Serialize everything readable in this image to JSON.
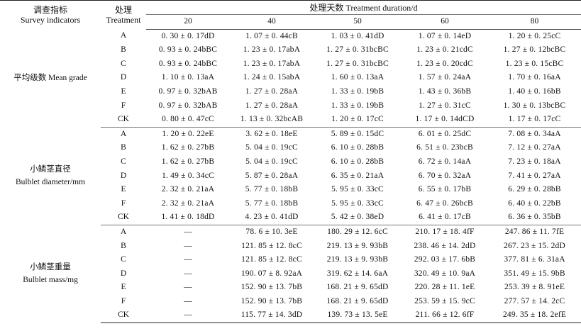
{
  "header": {
    "indicator_cn": "调查指标",
    "indicator_en": "Survey indicators",
    "treatment_cn": "处理",
    "treatment_en": "Treatment",
    "duration_label": "处理天数 Treatment duration/d",
    "days": [
      "20",
      "40",
      "50",
      "60",
      "80"
    ]
  },
  "groups": [
    {
      "name_cn": "平均级数 Mean grade",
      "name_en": "",
      "rows": [
        {
          "treatment": "A",
          "values": [
            "0. 30 ± 0. 17dD",
            "1. 07 ± 0. 44cB",
            "1. 03 ± 0. 41dD",
            "1. 07 ± 0. 14eD",
            "1. 20 ± 0. 25cC"
          ]
        },
        {
          "treatment": "B",
          "values": [
            "0. 93 ± 0. 24bBC",
            "1. 23 ± 0. 17abA",
            "1. 27 ± 0. 31bcBC",
            "1. 23 ± 0. 21cdC",
            "1. 27 ± 0. 12bcBC"
          ]
        },
        {
          "treatment": "C",
          "values": [
            "0. 93 ± 0. 24bBC",
            "1. 23 ± 0. 17abA",
            "1. 27 ± 0. 31bcBC",
            "1. 23 ± 0. 20cdC",
            "1. 23 ± 0. 15cBC"
          ]
        },
        {
          "treatment": "D",
          "values": [
            "1. 10 ± 0. 13aA",
            "1. 24 ± 0. 15abA",
            "1. 60 ± 0. 13aA",
            "1. 57 ± 0. 24aA",
            "1. 70 ± 0. 16aA"
          ]
        },
        {
          "treatment": "E",
          "values": [
            "0. 97 ± 0. 32bAB",
            "1. 27 ± 0. 28aA",
            "1. 33 ± 0. 19bB",
            "1. 43 ± 0. 36bB",
            "1. 40 ± 0. 16bB"
          ]
        },
        {
          "treatment": "F",
          "values": [
            "0. 97 ± 0. 32bAB",
            "1. 27 ± 0. 28aA",
            "1. 33 ± 0. 19bB",
            "1. 27 ± 0. 31cC",
            "1. 30 ± 0. 13bcBC"
          ]
        },
        {
          "treatment": "CK",
          "values": [
            "0. 80 ± 0. 47cC",
            "1. 13 ± 0. 32bcAB",
            "1. 20 ± 0. 17cC",
            "1. 17 ± 0. 14dCD",
            "1. 17 ± 0. 17cC"
          ]
        }
      ]
    },
    {
      "name_cn": "小鳞茎直径",
      "name_en": "Bulblet diameter/mm",
      "rows": [
        {
          "treatment": "A",
          "values": [
            "1. 20 ± 0. 22eE",
            "3. 62 ± 0. 18eE",
            "5. 89 ± 0. 15dC",
            "6. 01 ± 0. 25dC",
            "7. 08 ± 0. 34aA"
          ]
        },
        {
          "treatment": "B",
          "values": [
            "1. 62 ± 0. 27bB",
            "5. 04 ± 0. 19cC",
            "6. 10 ± 0. 28bB",
            "6. 51 ± 0. 23bcB",
            "7. 12 ± 0. 27aA"
          ]
        },
        {
          "treatment": "C",
          "values": [
            "1. 62 ± 0. 27bB",
            "5. 04 ± 0. 19cC",
            "6. 10 ± 0. 28bB",
            "6. 72 ± 0. 14aA",
            "7. 23 ± 0. 18aA"
          ]
        },
        {
          "treatment": "D",
          "values": [
            "1. 49 ± 0. 34cC",
            "5. 87 ± 0. 28aA",
            "6. 35 ± 0. 21aA",
            "6. 70 ± 0. 32aA",
            "7. 41 ± 0. 27aA"
          ]
        },
        {
          "treatment": "E",
          "values": [
            "2. 32 ± 0. 21aA",
            "5. 77 ± 0. 18bB",
            "5. 95 ± 0. 33cC",
            "6. 55 ± 0. 17bB",
            "6. 29 ± 0. 28bB"
          ]
        },
        {
          "treatment": "F",
          "values": [
            "2. 32 ± 0. 21aA",
            "5. 77 ± 0. 18bB",
            "5. 95 ± 0. 33cC",
            "6. 47 ± 0. 26bcB",
            "6. 40 ± 0. 22bB"
          ]
        },
        {
          "treatment": "CK",
          "values": [
            "1. 41 ± 0. 18dD",
            "4. 23 ± 0. 41dD",
            "5. 42 ± 0. 38eD",
            "6. 41 ± 0. 17cB",
            "6. 36 ± 0. 35bB"
          ]
        }
      ]
    },
    {
      "name_cn": "小鳞茎重量",
      "name_en": "Bulblet mass/mg",
      "rows": [
        {
          "treatment": "A",
          "values": [
            "—",
            "78. 6  ± 10. 3eE",
            "180. 29 ± 12. 6cC",
            "210. 17 ± 18. 4fF",
            "247. 86 ± 11. 7fE"
          ]
        },
        {
          "treatment": "B",
          "values": [
            "—",
            "121. 85 ± 12. 8cC",
            "219. 13 ± 9. 93bB",
            "238. 46 ± 14. 2dD",
            "267. 23 ± 15. 2dD"
          ]
        },
        {
          "treatment": "C",
          "values": [
            "—",
            "121. 85 ± 12. 8cC",
            "219. 13 ± 9. 93bB",
            "292. 03 ± 17. 6bB",
            "377. 81 ± 6. 31aA"
          ]
        },
        {
          "treatment": "D",
          "values": [
            "—",
            "190. 07 ± 8. 92aA",
            "319. 62 ± 14. 6aA",
            "320. 49 ± 10. 9aA",
            "351. 49 ± 15. 9bB"
          ]
        },
        {
          "treatment": "E",
          "values": [
            "—",
            "152. 90 ± 13. 7bB",
            "168. 21 ± 9. 65dD",
            "220. 28 ± 11. 1eE",
            "253. 39 ± 8. 91eE"
          ]
        },
        {
          "treatment": "F",
          "values": [
            "—",
            "152. 90 ± 13. 7bB",
            "168. 21 ± 9. 65dD",
            "253. 59 ± 15. 9cC",
            "277. 57 ± 14. 2cC"
          ]
        },
        {
          "treatment": "CK",
          "values": [
            "—",
            "115. 77 ± 14. 3dD",
            "139. 73 ± 13. 5eE",
            "211. 66 ± 12. 6fF",
            "249. 35 ± 18. 2efE"
          ]
        }
      ]
    }
  ]
}
